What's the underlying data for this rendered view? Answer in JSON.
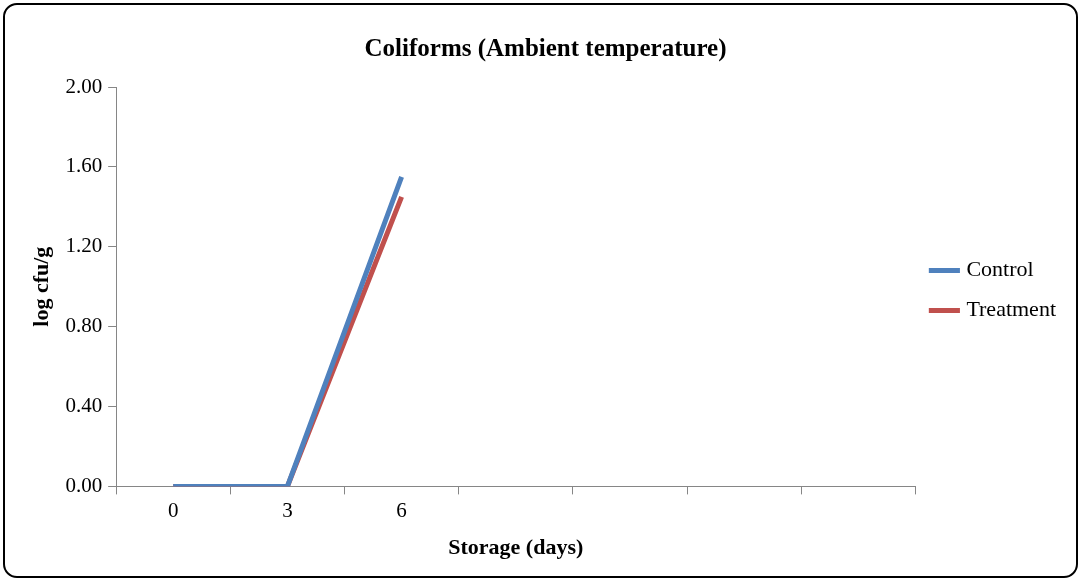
{
  "chart_data": {
    "type": "line",
    "title": "Coliforms (Ambient temperature)",
    "xlabel": "Storage (days)",
    "ylabel": "log cfu/g",
    "categories": [
      "0",
      "3",
      "6",
      null,
      null,
      null,
      null
    ],
    "series": [
      {
        "name": "Control",
        "color": "#4f81bd",
        "values": [
          0,
          0,
          1.55,
          null,
          null,
          null,
          null
        ]
      },
      {
        "name": "Treatment",
        "color": "#c0504d",
        "values": [
          0,
          0,
          1.45,
          null,
          null,
          null,
          null
        ]
      }
    ],
    "ylim": [
      0,
      2
    ],
    "yticks": [
      {
        "value": 0,
        "label": "0.00"
      },
      {
        "value": 0.4,
        "label": "0.40"
      },
      {
        "value": 0.8,
        "label": "0.80"
      },
      {
        "value": 1.2,
        "label": "1.20"
      },
      {
        "value": 1.6,
        "label": "1.60"
      },
      {
        "value": 2,
        "label": "2.00"
      }
    ],
    "grid": false,
    "legend": "right",
    "marker": "none",
    "line_style": "solid"
  }
}
